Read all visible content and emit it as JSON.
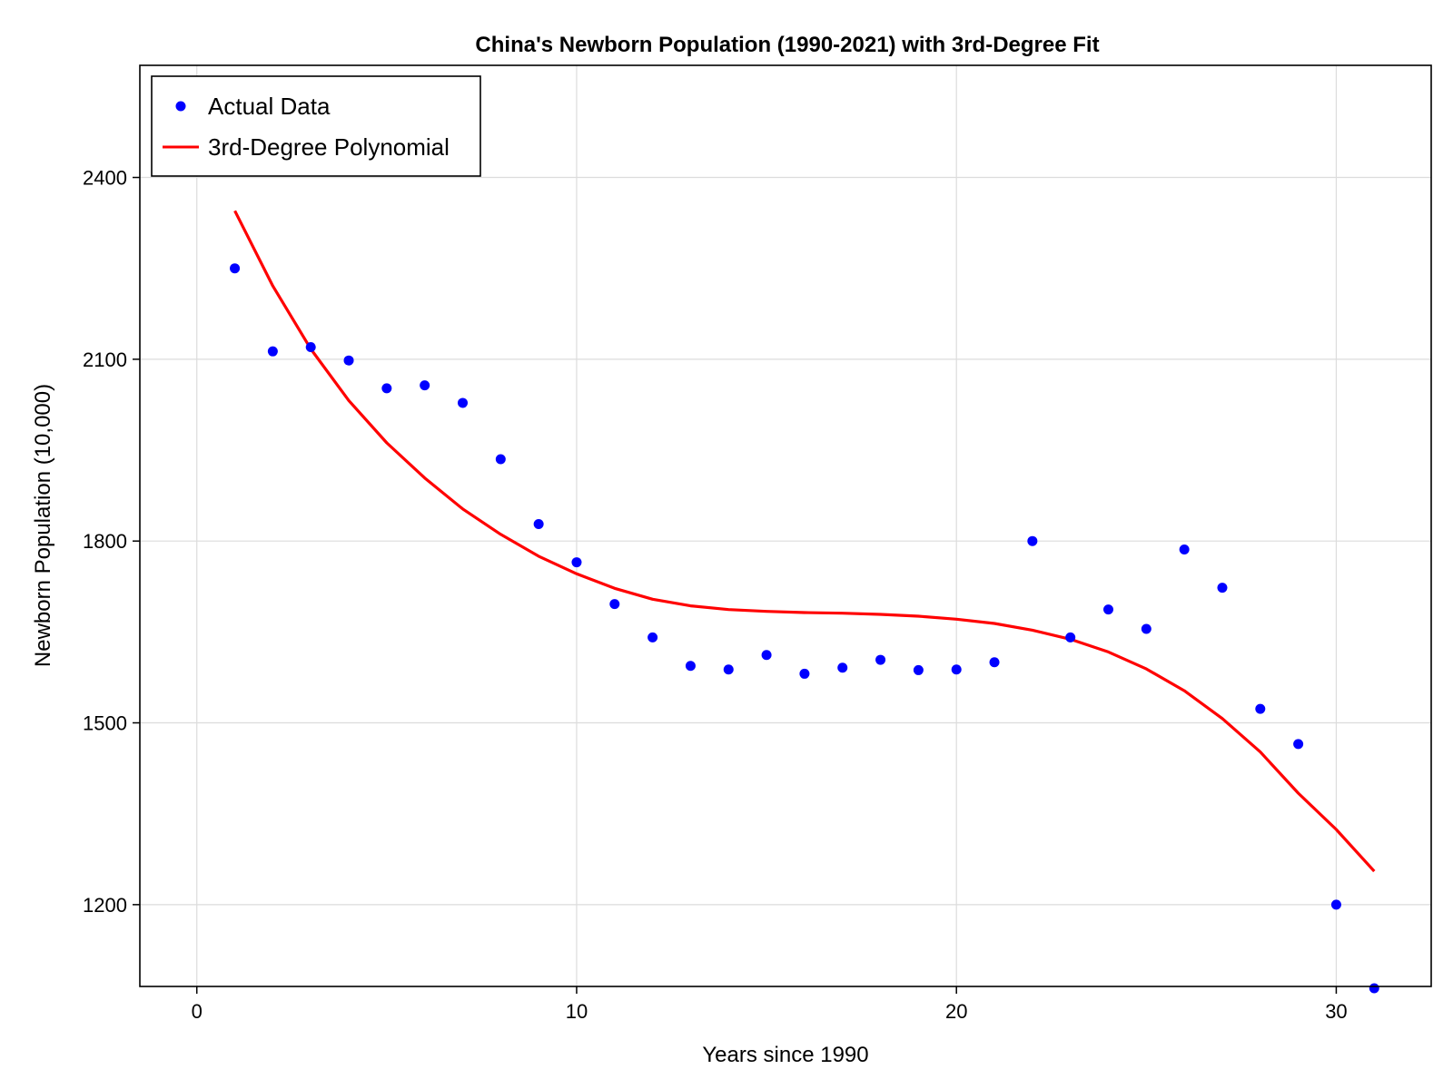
{
  "chart_data": {
    "type": "scatter",
    "title": "China's Newborn Population (1990-2021) with 3rd-Degree Fit",
    "xlabel": "Years since 1990",
    "ylabel": "Newborn Population (10,000)",
    "xlim": [
      -1.5,
      32.5
    ],
    "ylim": [
      1065,
      2585
    ],
    "x_ticks": [
      0,
      10,
      20,
      30
    ],
    "y_ticks": [
      1200,
      1500,
      1800,
      2100,
      2400
    ],
    "grid": true,
    "legend_position": "top-left",
    "series": [
      {
        "name": "Actual Data",
        "kind": "scatter",
        "color": "#0000ff",
        "x": [
          1,
          2,
          3,
          4,
          5,
          6,
          7,
          8,
          9,
          10,
          11,
          12,
          13,
          14,
          15,
          16,
          17,
          18,
          19,
          20,
          21,
          22,
          23,
          24,
          25,
          26,
          27,
          28,
          29,
          30,
          31
        ],
        "y": [
          2250,
          2113,
          2120,
          2098,
          2052,
          2057,
          2028,
          1935,
          1828,
          1765,
          1696,
          1641,
          1594,
          1588,
          1612,
          1581,
          1591,
          1604,
          1587,
          1588,
          1600,
          1800,
          1641,
          1687,
          1655,
          1786,
          1723,
          1523,
          1465,
          1200,
          1062
        ]
      },
      {
        "name": "3rd-Degree Polynomial",
        "kind": "line",
        "color": "#ff0000",
        "x": [
          1,
          2,
          3,
          4,
          5,
          6,
          7,
          8,
          9,
          10,
          11,
          12,
          13,
          14,
          15,
          16,
          17,
          18,
          19,
          20,
          21,
          22,
          23,
          24,
          25,
          26,
          27,
          28,
          29,
          30,
          31
        ],
        "y": [
          2345,
          2221,
          2117,
          2032,
          1962,
          1904,
          1853,
          1811,
          1775,
          1746,
          1722,
          1704,
          1693,
          1687,
          1684,
          1682,
          1681,
          1679,
          1676,
          1671,
          1664,
          1653,
          1638,
          1617,
          1589,
          1553,
          1507,
          1452,
          1384,
          1324,
          1255
        ]
      }
    ]
  }
}
